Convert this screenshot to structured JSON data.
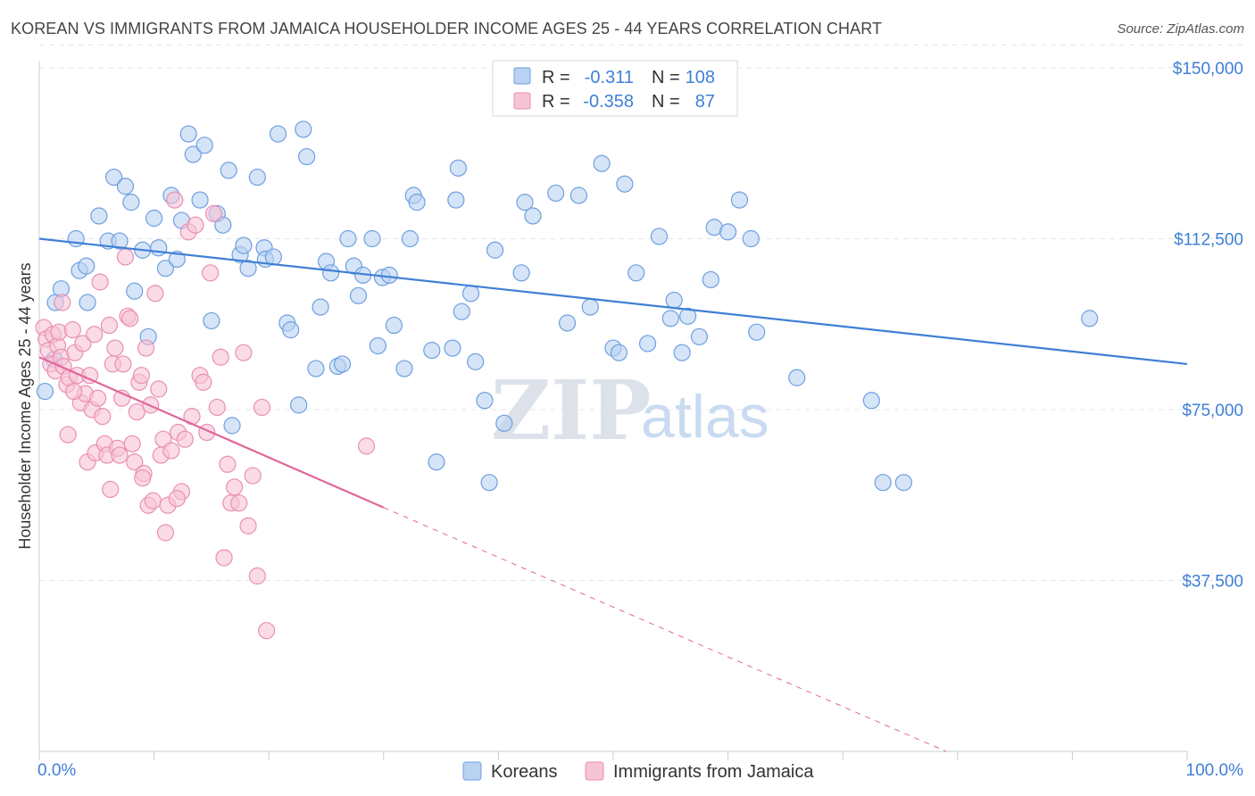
{
  "header": {
    "title": "KOREAN VS IMMIGRANTS FROM JAMAICA HOUSEHOLDER INCOME AGES 25 - 44 YEARS CORRELATION CHART",
    "source": "Source: ZipAtlas.com"
  },
  "watermark": {
    "zip": "ZIP",
    "atlas": "atlas"
  },
  "colors": {
    "blue": "#3f7fd6",
    "blue_fill": "#b9d2f2",
    "blue_stroke": "#6f9fe0",
    "pink": "#e0669a",
    "pink_fill": "#f7c3d6",
    "pink_stroke": "#ea8fb2",
    "grid": "#e3e6ea"
  },
  "legend_stats": [
    {
      "r_label": "R =",
      "r": "-0.311",
      "n_label": "N =",
      "n": "108",
      "color": "blue"
    },
    {
      "r_label": "R =",
      "r": "-0.358",
      "n_label": "N =",
      "n": "87",
      "color": "pink"
    }
  ],
  "chart_data": {
    "type": "scatter",
    "title": "KOREAN VS IMMIGRANTS FROM JAMAICA HOUSEHOLDER INCOME AGES 25 - 44 YEARS CORRELATION CHART",
    "xlabel": "",
    "ylabel": "Householder Income Ages 25 - 44 years",
    "xlim": [
      0,
      100
    ],
    "ylim": [
      0,
      155000
    ],
    "x_tick_labels": [
      "0.0%",
      "100.0%"
    ],
    "y_ticks": [
      37500,
      75000,
      112500,
      150000
    ],
    "y_tick_labels": [
      "$37,500",
      "$75,000",
      "$112,500",
      "$150,000"
    ],
    "grid": true,
    "legend_position": "bottom-center",
    "series": [
      {
        "name": "Koreans",
        "color": "blue",
        "trend": {
          "x": [
            0,
            100
          ],
          "y": [
            112500,
            85000
          ],
          "solid_until": 100
        },
        "points": [
          [
            1.4,
            98500
          ],
          [
            1.3,
            86000
          ],
          [
            1.9,
            101500
          ],
          [
            3.5,
            105500
          ],
          [
            4.1,
            106500
          ],
          [
            3.2,
            112500
          ],
          [
            4.2,
            98500
          ],
          [
            6.0,
            112000
          ],
          [
            5.2,
            117500
          ],
          [
            7.0,
            112000
          ],
          [
            6.5,
            126000
          ],
          [
            7.5,
            124000
          ],
          [
            8.0,
            120500
          ],
          [
            8.3,
            101000
          ],
          [
            9.0,
            110000
          ],
          [
            9.5,
            91000
          ],
          [
            10.0,
            117000
          ],
          [
            10.4,
            110500
          ],
          [
            11.0,
            106000
          ],
          [
            11.5,
            122000
          ],
          [
            12.0,
            108000
          ],
          [
            12.4,
            116500
          ],
          [
            13.0,
            135500
          ],
          [
            13.4,
            131000
          ],
          [
            14.0,
            121000
          ],
          [
            14.4,
            133000
          ],
          [
            15.0,
            94500
          ],
          [
            15.5,
            118000
          ],
          [
            16.0,
            115500
          ],
          [
            16.5,
            127500
          ],
          [
            16.8,
            71500
          ],
          [
            17.5,
            109000
          ],
          [
            18.2,
            106000
          ],
          [
            17.8,
            111000
          ],
          [
            19.0,
            126000
          ],
          [
            19.6,
            110500
          ],
          [
            19.7,
            108000
          ],
          [
            20.4,
            108500
          ],
          [
            20.8,
            135500
          ],
          [
            21.6,
            94000
          ],
          [
            21.9,
            92500
          ],
          [
            22.6,
            76000
          ],
          [
            23.0,
            136500
          ],
          [
            23.3,
            130500
          ],
          [
            24.1,
            84000
          ],
          [
            24.5,
            97500
          ],
          [
            25.0,
            107500
          ],
          [
            25.4,
            105000
          ],
          [
            26.0,
            84500
          ],
          [
            26.4,
            85000
          ],
          [
            26.9,
            112500
          ],
          [
            27.4,
            106500
          ],
          [
            27.8,
            100000
          ],
          [
            28.2,
            104500
          ],
          [
            29.0,
            112500
          ],
          [
            29.5,
            89000
          ],
          [
            29.9,
            104000
          ],
          [
            30.5,
            104500
          ],
          [
            30.9,
            93500
          ],
          [
            31.8,
            84000
          ],
          [
            32.3,
            112500
          ],
          [
            32.6,
            122000
          ],
          [
            32.9,
            120500
          ],
          [
            34.2,
            88000
          ],
          [
            34.6,
            63500
          ],
          [
            36.0,
            88500
          ],
          [
            36.3,
            121000
          ],
          [
            36.5,
            128000
          ],
          [
            36.8,
            96500
          ],
          [
            37.6,
            100500
          ],
          [
            38.0,
            85500
          ],
          [
            38.8,
            77000
          ],
          [
            39.2,
            59000
          ],
          [
            39.7,
            110000
          ],
          [
            40.5,
            72000
          ],
          [
            42.0,
            105000
          ],
          [
            42.3,
            120500
          ],
          [
            43.0,
            117500
          ],
          [
            45.0,
            122500
          ],
          [
            46.0,
            94000
          ],
          [
            47.0,
            122000
          ],
          [
            48.0,
            97500
          ],
          [
            49.0,
            129000
          ],
          [
            50.0,
            88500
          ],
          [
            50.5,
            87500
          ],
          [
            51.0,
            124500
          ],
          [
            52.0,
            105000
          ],
          [
            53.0,
            89500
          ],
          [
            54.0,
            113000
          ],
          [
            55.0,
            95000
          ],
          [
            55.3,
            99000
          ],
          [
            56.0,
            87500
          ],
          [
            56.5,
            95500
          ],
          [
            57.5,
            91000
          ],
          [
            58.5,
            103500
          ],
          [
            58.8,
            115000
          ],
          [
            60.0,
            114000
          ],
          [
            61.0,
            121000
          ],
          [
            62.0,
            112500
          ],
          [
            62.5,
            92000
          ],
          [
            66.0,
            82000
          ],
          [
            72.5,
            77000
          ],
          [
            73.5,
            59000
          ],
          [
            75.3,
            59000
          ],
          [
            91.5,
            95000
          ],
          [
            0.5,
            79000
          ]
        ]
      },
      {
        "name": "Immigrants from Jamaica",
        "color": "pink",
        "trend": {
          "x": [
            0,
            30,
            79
          ],
          "y": [
            86500,
            53500,
            0
          ],
          "solid_until": 30
        },
        "points": [
          [
            0.4,
            93000
          ],
          [
            0.6,
            90500
          ],
          [
            0.8,
            88000
          ],
          [
            1.0,
            85000
          ],
          [
            1.2,
            91500
          ],
          [
            1.4,
            83500
          ],
          [
            1.6,
            89000
          ],
          [
            1.7,
            92000
          ],
          [
            1.9,
            86500
          ],
          [
            2.1,
            84500
          ],
          [
            2.4,
            80500
          ],
          [
            2.6,
            82000
          ],
          [
            2.9,
            92500
          ],
          [
            3.1,
            87500
          ],
          [
            3.3,
            82500
          ],
          [
            3.6,
            76500
          ],
          [
            3.8,
            89500
          ],
          [
            4.0,
            78500
          ],
          [
            4.2,
            63500
          ],
          [
            4.4,
            82500
          ],
          [
            4.6,
            75000
          ],
          [
            4.9,
            65500
          ],
          [
            5.1,
            77500
          ],
          [
            5.3,
            103000
          ],
          [
            5.5,
            73500
          ],
          [
            5.7,
            67500
          ],
          [
            5.9,
            65000
          ],
          [
            6.1,
            93500
          ],
          [
            6.4,
            85000
          ],
          [
            6.6,
            88500
          ],
          [
            6.8,
            66500
          ],
          [
            7.0,
            65000
          ],
          [
            7.2,
            77500
          ],
          [
            7.5,
            108500
          ],
          [
            7.7,
            95500
          ],
          [
            7.9,
            95000
          ],
          [
            8.1,
            67500
          ],
          [
            8.3,
            63500
          ],
          [
            8.5,
            74500
          ],
          [
            8.7,
            81000
          ],
          [
            8.9,
            82500
          ],
          [
            9.1,
            61000
          ],
          [
            9.3,
            88500
          ],
          [
            9.5,
            54000
          ],
          [
            9.7,
            76000
          ],
          [
            9.9,
            55000
          ],
          [
            10.1,
            100500
          ],
          [
            10.4,
            79500
          ],
          [
            10.6,
            65000
          ],
          [
            10.8,
            68500
          ],
          [
            11.0,
            48000
          ],
          [
            11.2,
            54000
          ],
          [
            11.5,
            66000
          ],
          [
            11.8,
            121000
          ],
          [
            12.1,
            70000
          ],
          [
            12.4,
            57000
          ],
          [
            12.7,
            68500
          ],
          [
            13.0,
            114000
          ],
          [
            13.3,
            73500
          ],
          [
            13.6,
            115500
          ],
          [
            14.0,
            82500
          ],
          [
            14.3,
            81000
          ],
          [
            14.6,
            70000
          ],
          [
            14.9,
            105000
          ],
          [
            15.2,
            118000
          ],
          [
            15.5,
            75500
          ],
          [
            15.8,
            86500
          ],
          [
            16.1,
            42500
          ],
          [
            16.4,
            63000
          ],
          [
            16.7,
            54500
          ],
          [
            17.0,
            58000
          ],
          [
            17.4,
            54500
          ],
          [
            17.8,
            87500
          ],
          [
            18.2,
            49500
          ],
          [
            18.6,
            60500
          ],
          [
            19.0,
            38500
          ],
          [
            19.4,
            75500
          ],
          [
            19.8,
            26500
          ],
          [
            28.5,
            67000
          ],
          [
            2.0,
            98500
          ],
          [
            3.0,
            79000
          ],
          [
            6.2,
            57500
          ],
          [
            12.0,
            55500
          ],
          [
            7.3,
            85000
          ],
          [
            2.5,
            69500
          ],
          [
            9.0,
            60000
          ],
          [
            4.8,
            91500
          ]
        ]
      }
    ]
  }
}
